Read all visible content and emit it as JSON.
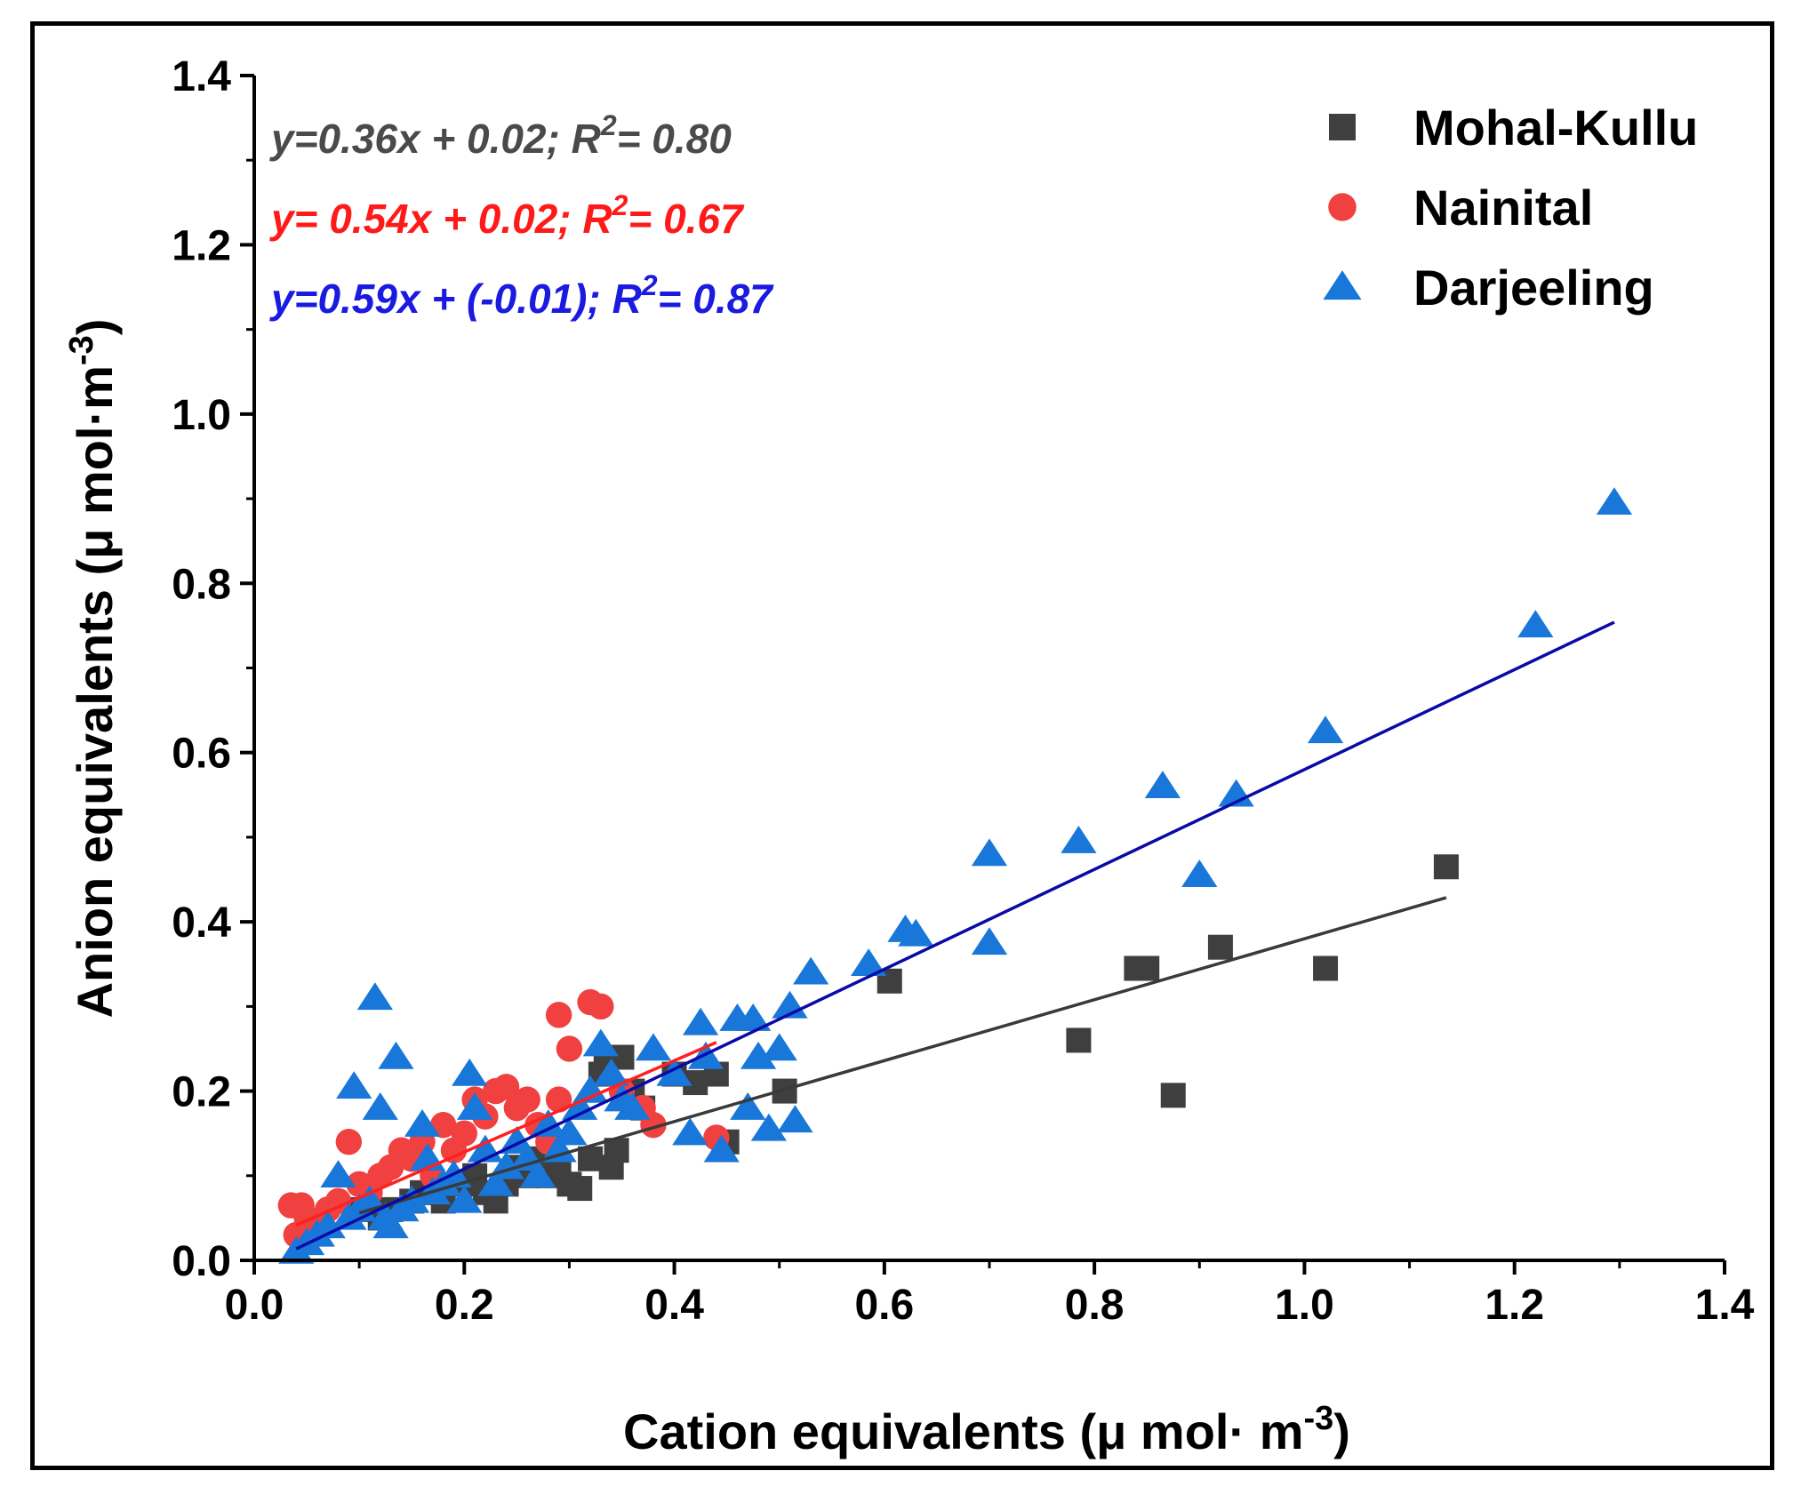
{
  "chart_data": {
    "type": "scatter",
    "title": "",
    "xlabel": "Cation equivalents (μ mol· m",
    "xlabel_sup": "-3",
    "xlabel_end": ")",
    "ylabel": "Anion equivalents (μ mol·m",
    "ylabel_sup": "-3",
    "ylabel_end": ")",
    "xlim": [
      0.0,
      1.4
    ],
    "ylim": [
      0.0,
      1.4
    ],
    "xticks": [
      "0.0",
      "0.2",
      "0.4",
      "0.6",
      "0.8",
      "1.0",
      "1.2",
      "1.4"
    ],
    "yticks": [
      "0.0",
      "0.2",
      "0.4",
      "0.6",
      "0.8",
      "1.0",
      "1.2",
      "1.4"
    ],
    "grid": false,
    "legend_position": "top-right",
    "series": [
      {
        "name": "Mohal-Kullu",
        "marker": "square",
        "color": "#3f3f3f",
        "fit": {
          "slope": 0.36,
          "intercept": 0.02,
          "x_range": [
            0.1,
            1.135
          ]
        },
        "equation": {
          "pre": "y=0.36x + 0.02; R",
          "sup": "2",
          "post": "= 0.80"
        },
        "points": [
          [
            0.1,
            0.06
          ],
          [
            0.12,
            0.05
          ],
          [
            0.13,
            0.06
          ],
          [
            0.15,
            0.07
          ],
          [
            0.16,
            0.08
          ],
          [
            0.18,
            0.07
          ],
          [
            0.2,
            0.09
          ],
          [
            0.21,
            0.1
          ],
          [
            0.22,
            0.08
          ],
          [
            0.23,
            0.07
          ],
          [
            0.24,
            0.09
          ],
          [
            0.25,
            0.11
          ],
          [
            0.26,
            0.1
          ],
          [
            0.27,
            0.12
          ],
          [
            0.28,
            0.1
          ],
          [
            0.29,
            0.11
          ],
          [
            0.3,
            0.09
          ],
          [
            0.31,
            0.085
          ],
          [
            0.32,
            0.12
          ],
          [
            0.33,
            0.22
          ],
          [
            0.335,
            0.23
          ],
          [
            0.34,
            0.11
          ],
          [
            0.345,
            0.13
          ],
          [
            0.35,
            0.24
          ],
          [
            0.36,
            0.2
          ],
          [
            0.37,
            0.18
          ],
          [
            0.4,
            0.22
          ],
          [
            0.42,
            0.21
          ],
          [
            0.44,
            0.22
          ],
          [
            0.45,
            0.14
          ],
          [
            0.505,
            0.2
          ],
          [
            0.605,
            0.33
          ],
          [
            0.785,
            0.26
          ],
          [
            0.84,
            0.345
          ],
          [
            0.85,
            0.345
          ],
          [
            0.875,
            0.195
          ],
          [
            0.92,
            0.37
          ],
          [
            1.02,
            0.345
          ],
          [
            1.135,
            0.465
          ]
        ]
      },
      {
        "name": "Nainital",
        "marker": "circle",
        "color": "#f04040",
        "fit": {
          "slope": 0.54,
          "intercept": 0.02,
          "x_range": [
            0.04,
            0.44
          ]
        },
        "equation": {
          "pre": "y= 0.54x + 0.02; R",
          "sup": "2",
          "post": "= 0.67"
        },
        "points": [
          [
            0.035,
            0.065
          ],
          [
            0.04,
            0.03
          ],
          [
            0.045,
            0.065
          ],
          [
            0.05,
            0.05
          ],
          [
            0.06,
            0.04
          ],
          [
            0.07,
            0.06
          ],
          [
            0.08,
            0.07
          ],
          [
            0.09,
            0.14
          ],
          [
            0.1,
            0.09
          ],
          [
            0.11,
            0.08
          ],
          [
            0.12,
            0.1
          ],
          [
            0.13,
            0.11
          ],
          [
            0.14,
            0.13
          ],
          [
            0.15,
            0.12
          ],
          [
            0.16,
            0.14
          ],
          [
            0.17,
            0.1
          ],
          [
            0.18,
            0.16
          ],
          [
            0.19,
            0.13
          ],
          [
            0.2,
            0.15
          ],
          [
            0.21,
            0.19
          ],
          [
            0.22,
            0.17
          ],
          [
            0.23,
            0.2
          ],
          [
            0.24,
            0.205
          ],
          [
            0.25,
            0.18
          ],
          [
            0.26,
            0.19
          ],
          [
            0.27,
            0.16
          ],
          [
            0.28,
            0.14
          ],
          [
            0.29,
            0.19
          ],
          [
            0.29,
            0.29
          ],
          [
            0.3,
            0.25
          ],
          [
            0.32,
            0.305
          ],
          [
            0.33,
            0.3
          ],
          [
            0.35,
            0.2
          ],
          [
            0.37,
            0.18
          ],
          [
            0.38,
            0.16
          ],
          [
            0.44,
            0.145
          ]
        ]
      },
      {
        "name": "Darjeeling",
        "marker": "triangle",
        "color": "#1877d8",
        "fit": {
          "slope": 0.59,
          "intercept": -0.01,
          "x_range": [
            0.04,
            1.295
          ]
        },
        "equation": {
          "pre": "y=0.59x + (-0.01); R",
          "sup": "2",
          "post": "= 0.87"
        },
        "points": [
          [
            0.04,
            0.01
          ],
          [
            0.05,
            0.02
          ],
          [
            0.06,
            0.03
          ],
          [
            0.07,
            0.04
          ],
          [
            0.08,
            0.1
          ],
          [
            0.09,
            0.05
          ],
          [
            0.095,
            0.205
          ],
          [
            0.1,
            0.06
          ],
          [
            0.11,
            0.07
          ],
          [
            0.115,
            0.31
          ],
          [
            0.12,
            0.18
          ],
          [
            0.125,
            0.05
          ],
          [
            0.13,
            0.04
          ],
          [
            0.135,
            0.24
          ],
          [
            0.14,
            0.06
          ],
          [
            0.15,
            0.07
          ],
          [
            0.16,
            0.16
          ],
          [
            0.165,
            0.12
          ],
          [
            0.17,
            0.08
          ],
          [
            0.18,
            0.09
          ],
          [
            0.19,
            0.1
          ],
          [
            0.2,
            0.07
          ],
          [
            0.205,
            0.22
          ],
          [
            0.21,
            0.18
          ],
          [
            0.22,
            0.13
          ],
          [
            0.23,
            0.09
          ],
          [
            0.24,
            0.11
          ],
          [
            0.25,
            0.14
          ],
          [
            0.26,
            0.12
          ],
          [
            0.27,
            0.1
          ],
          [
            0.28,
            0.16
          ],
          [
            0.29,
            0.13
          ],
          [
            0.3,
            0.15
          ],
          [
            0.31,
            0.18
          ],
          [
            0.32,
            0.2
          ],
          [
            0.33,
            0.255
          ],
          [
            0.34,
            0.22
          ],
          [
            0.35,
            0.19
          ],
          [
            0.36,
            0.18
          ],
          [
            0.38,
            0.25
          ],
          [
            0.4,
            0.22
          ],
          [
            0.415,
            0.15
          ],
          [
            0.425,
            0.28
          ],
          [
            0.43,
            0.24
          ],
          [
            0.445,
            0.13
          ],
          [
            0.46,
            0.285
          ],
          [
            0.47,
            0.18
          ],
          [
            0.475,
            0.285
          ],
          [
            0.48,
            0.24
          ],
          [
            0.49,
            0.155
          ],
          [
            0.5,
            0.25
          ],
          [
            0.51,
            0.3
          ],
          [
            0.515,
            0.165
          ],
          [
            0.53,
            0.34
          ],
          [
            0.585,
            0.35
          ],
          [
            0.62,
            0.39
          ],
          [
            0.63,
            0.385
          ],
          [
            0.7,
            0.48
          ],
          [
            0.7,
            0.375
          ],
          [
            0.785,
            0.495
          ],
          [
            0.865,
            0.56
          ],
          [
            0.9,
            0.455
          ],
          [
            0.935,
            0.55
          ],
          [
            1.02,
            0.625
          ],
          [
            1.22,
            0.75
          ],
          [
            1.295,
            0.895
          ]
        ]
      }
    ]
  }
}
